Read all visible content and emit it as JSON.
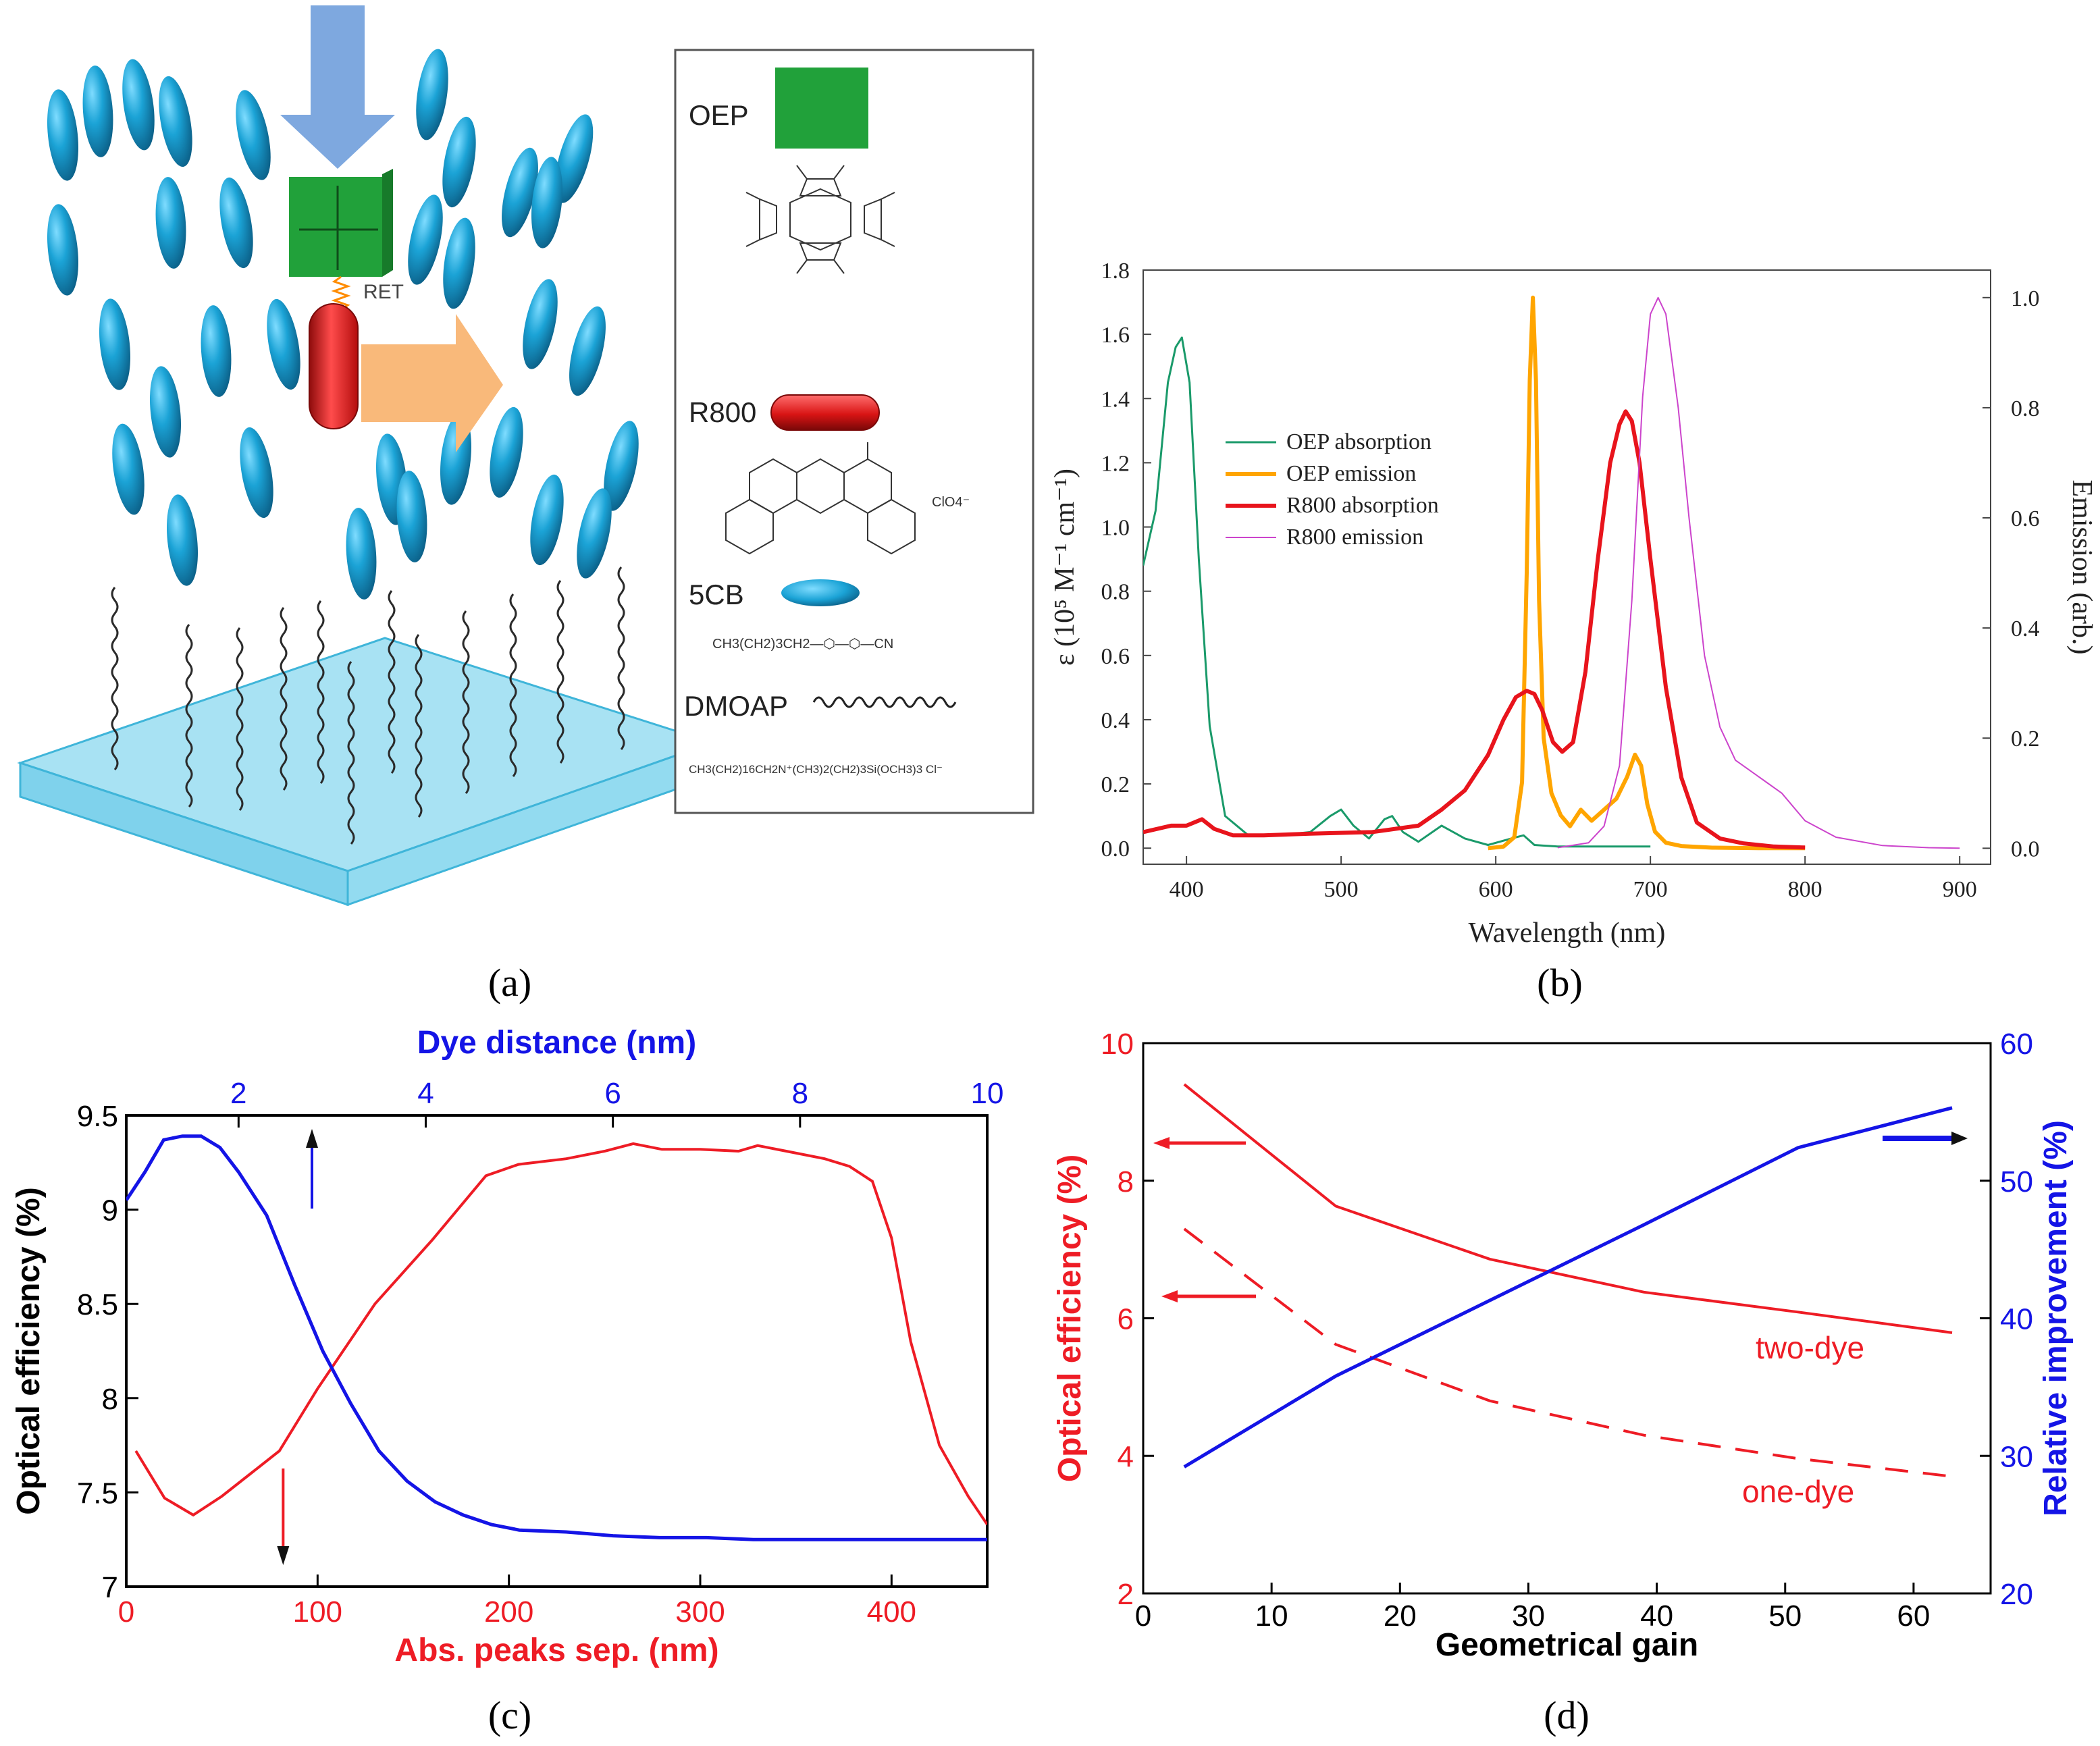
{
  "colors": {
    "lc_blue": "#1ba3d6",
    "lc_dark": "#0e6c97",
    "oep_green": "#21a13a",
    "r800_red": "#e01b1b",
    "arrow_blue": "#7ea8df",
    "arrow_orange": "#f9b97a",
    "glass": "#a8e2f3",
    "glass_edge": "#3fb5d9",
    "chart_red": "#ee1c25",
    "chart_blue": "#1414e6",
    "b_green": "#1a9a6a",
    "b_orange": "#ffa500",
    "b_red": "#e8141c",
    "b_magenta": "#cc44cc"
  },
  "panel_a": {
    "caption": "(a)",
    "ret_label": "RET",
    "legend": {
      "oep": "OEP",
      "r800": "R800",
      "fivecb": "5CB",
      "dmoap": "DMOAP",
      "r800_counterion": "ClO4⁻",
      "fivecb_formula": "CH3(CH2)3CH2—⬡—⬡—CN",
      "dmoap_formula": "CH3(CH2)16CH2N⁺(CH3)2(CH2)3Si(OCH3)3 Cl⁻",
      "oep_structure_note": "octaethylporphyrin"
    }
  },
  "chart_data": [
    {
      "panel": "b",
      "type": "line",
      "caption": "(b)",
      "xlabel": "Wavelength (nm)",
      "ylabel_left": "ε (10⁵ M⁻¹ cm⁻¹)",
      "ylabel_right": "Emission (arb.)",
      "xlim": [
        372,
        920
      ],
      "ylim_left": [
        -0.05,
        1.8
      ],
      "ylim_right": [
        -0.029,
        1.05
      ],
      "xticks": [
        400,
        500,
        600,
        700,
        800,
        900
      ],
      "yticks_left": [
        0.0,
        0.2,
        0.4,
        0.6,
        0.8,
        1.0,
        1.2,
        1.4,
        1.6,
        1.8
      ],
      "yticks_right": [
        0.0,
        0.2,
        0.4,
        0.6,
        0.8,
        1.0
      ],
      "xtick_labels": [
        "400",
        "500",
        "600",
        "700",
        "800",
        "900"
      ],
      "ytick_labels_left": [
        "0.0",
        "0.2",
        "0.4",
        "0.6",
        "0.8",
        "1.0",
        "1.2",
        "1.4",
        "1.6",
        "1.8"
      ],
      "ytick_labels_right": [
        "0.0",
        "0.2",
        "0.4",
        "0.6",
        "0.8",
        "1.0"
      ],
      "legend": [
        "OEP absorption",
        "OEP emission",
        "R800 absorption",
        "R800 emission"
      ],
      "series": [
        {
          "name": "OEP absorption",
          "axis": "left",
          "color": "#1a9a6a",
          "x": [
            372,
            380,
            388,
            393,
            397,
            402,
            408,
            415,
            425,
            440,
            460,
            480,
            493,
            500,
            508,
            518,
            528,
            533,
            540,
            550,
            565,
            580,
            595,
            610,
            618,
            625,
            640,
            660,
            680,
            700
          ],
          "y": [
            0.88,
            1.05,
            1.45,
            1.56,
            1.59,
            1.45,
            0.9,
            0.38,
            0.1,
            0.04,
            0.04,
            0.05,
            0.1,
            0.12,
            0.07,
            0.03,
            0.09,
            0.1,
            0.05,
            0.02,
            0.07,
            0.03,
            0.01,
            0.03,
            0.04,
            0.01,
            0.005,
            0.005,
            0.005,
            0.005
          ]
        },
        {
          "name": "OEP emission",
          "axis": "right",
          "color": "#ffa500",
          "x": [
            595,
            605,
            612,
            617,
            620,
            622,
            624,
            626,
            628,
            631,
            636,
            642,
            648,
            655,
            662,
            670,
            678,
            685,
            690,
            694,
            698,
            703,
            710,
            720,
            740,
            770,
            800
          ],
          "y": [
            0.0,
            0.003,
            0.02,
            0.12,
            0.5,
            0.85,
            1.0,
            0.85,
            0.45,
            0.2,
            0.1,
            0.06,
            0.04,
            0.07,
            0.05,
            0.07,
            0.09,
            0.13,
            0.17,
            0.15,
            0.08,
            0.03,
            0.01,
            0.004,
            0.001,
            0.0,
            0.0
          ]
        },
        {
          "name": "R800 absorption",
          "axis": "left",
          "color": "#e8141c",
          "x": [
            372,
            390,
            400,
            410,
            418,
            430,
            450,
            480,
            520,
            550,
            565,
            580,
            595,
            605,
            613,
            620,
            625,
            630,
            637,
            643,
            650,
            658,
            666,
            674,
            680,
            684,
            688,
            693,
            700,
            710,
            720,
            730,
            745,
            760,
            780,
            800
          ],
          "y": [
            0.05,
            0.07,
            0.07,
            0.09,
            0.06,
            0.04,
            0.04,
            0.045,
            0.05,
            0.07,
            0.12,
            0.18,
            0.29,
            0.4,
            0.47,
            0.49,
            0.48,
            0.43,
            0.33,
            0.3,
            0.33,
            0.55,
            0.9,
            1.2,
            1.32,
            1.36,
            1.33,
            1.2,
            0.9,
            0.5,
            0.22,
            0.08,
            0.03,
            0.015,
            0.005,
            0.002
          ]
        },
        {
          "name": "R800 emission",
          "axis": "right",
          "color": "#cc44cc",
          "x": [
            640,
            660,
            670,
            680,
            688,
            695,
            700,
            705,
            710,
            718,
            725,
            735,
            745,
            755,
            765,
            775,
            785,
            800,
            820,
            850,
            880,
            900
          ],
          "y": [
            0.001,
            0.01,
            0.04,
            0.15,
            0.45,
            0.82,
            0.97,
            1.0,
            0.97,
            0.8,
            0.6,
            0.35,
            0.22,
            0.16,
            0.14,
            0.12,
            0.1,
            0.05,
            0.02,
            0.005,
            0.001,
            0.0
          ]
        }
      ]
    },
    {
      "panel": "c",
      "type": "line",
      "caption": "(c)",
      "xlabel": "Abs. peaks sep. (nm)",
      "xlabel_top": "Dye distance (nm)",
      "ylabel": "Optical efficiency (%)",
      "xlim": [
        0,
        450
      ],
      "xlim_top": [
        0.8,
        10
      ],
      "ylim": [
        7,
        9.5
      ],
      "xticks": [
        0,
        100,
        200,
        300,
        400
      ],
      "xticks_top": [
        2,
        4,
        6,
        8,
        10
      ],
      "yticks": [
        7,
        7.5,
        8,
        8.5,
        9,
        9.5
      ],
      "xtick_labels": [
        "0",
        "100",
        "200",
        "300",
        "400"
      ],
      "xtick_labels_top": [
        "2",
        "4",
        "6",
        "8",
        "10"
      ],
      "ytick_labels": [
        "7",
        "7.5",
        "8",
        "8.5",
        "9",
        "9.5"
      ],
      "series": [
        {
          "name": "efficiency vs peak separation",
          "axis": "bottom",
          "color": "#ee1c25",
          "x": [
            5,
            20,
            35,
            50,
            65,
            80,
            100,
            130,
            160,
            188,
            205,
            230,
            250,
            265,
            280,
            300,
            320,
            330,
            345,
            365,
            378,
            390,
            400,
            410,
            425,
            440,
            450
          ],
          "y": [
            7.72,
            7.47,
            7.38,
            7.48,
            7.6,
            7.72,
            8.05,
            8.5,
            8.84,
            9.18,
            9.24,
            9.27,
            9.31,
            9.35,
            9.32,
            9.32,
            9.31,
            9.34,
            9.31,
            9.27,
            9.23,
            9.15,
            8.85,
            8.3,
            7.75,
            7.48,
            7.33
          ]
        },
        {
          "name": "efficiency vs dye distance",
          "axis": "top",
          "color": "#1414e6",
          "x": [
            0.8,
            1.0,
            1.2,
            1.4,
            1.6,
            1.8,
            2.0,
            2.3,
            2.6,
            2.9,
            3.2,
            3.5,
            3.8,
            4.1,
            4.4,
            4.7,
            5.0,
            5.5,
            6.0,
            6.5,
            7.0,
            7.5,
            8.0,
            8.5,
            9.0,
            9.5,
            10.0
          ],
          "y": [
            9.05,
            9.2,
            9.37,
            9.39,
            9.39,
            9.33,
            9.2,
            8.97,
            8.6,
            8.25,
            7.97,
            7.72,
            7.56,
            7.45,
            7.38,
            7.33,
            7.3,
            7.29,
            7.27,
            7.26,
            7.26,
            7.25,
            7.25,
            7.25,
            7.25,
            7.25,
            7.25
          ]
        }
      ]
    },
    {
      "panel": "d",
      "type": "line",
      "caption": "(d)",
      "xlabel": "Geometrical gain",
      "ylabel_left": "Optical efficiency (%)",
      "ylabel_right": "Relative improvement (%)",
      "xlim": [
        0,
        66
      ],
      "ylim_left": [
        2,
        10
      ],
      "ylim_right": [
        20,
        60
      ],
      "xticks": [
        0,
        10,
        20,
        30,
        40,
        50,
        60
      ],
      "yticks_left": [
        2,
        4,
        6,
        8,
        10
      ],
      "yticks_right": [
        20,
        30,
        40,
        50,
        60
      ],
      "xtick_labels": [
        "0",
        "10",
        "20",
        "30",
        "40",
        "50",
        "60"
      ],
      "ytick_labels_left": [
        "2",
        "4",
        "6",
        "8",
        "10"
      ],
      "ytick_labels_right": [
        "20",
        "30",
        "40",
        "50",
        "60"
      ],
      "annotations": {
        "two_dye": "two-dye",
        "one_dye": "one-dye"
      },
      "series": [
        {
          "name": "two-dye",
          "axis": "left",
          "color": "#ee1c25",
          "dash": "solid",
          "x": [
            3.2,
            15,
            27,
            39,
            51,
            63
          ],
          "y": [
            9.4,
            7.63,
            6.86,
            6.38,
            6.09,
            5.79
          ]
        },
        {
          "name": "one-dye",
          "axis": "left",
          "color": "#ee1c25",
          "dash": "dashed",
          "x": [
            3.2,
            15,
            27,
            39,
            51,
            63
          ],
          "y": [
            7.3,
            5.62,
            4.8,
            4.3,
            3.96,
            3.7
          ]
        },
        {
          "name": "relative improvement",
          "axis": "right",
          "color": "#1414e6",
          "dash": "solid",
          "x": [
            3.2,
            15,
            27,
            39,
            51,
            63
          ],
          "y": [
            29.2,
            35.8,
            41.3,
            46.8,
            52.4,
            55.3
          ]
        }
      ]
    }
  ]
}
